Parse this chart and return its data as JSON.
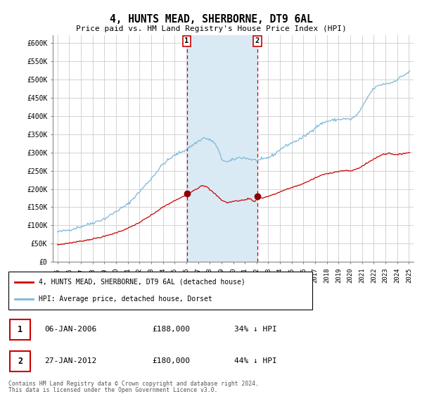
{
  "title": "4, HUNTS MEAD, SHERBORNE, DT9 6AL",
  "subtitle": "Price paid vs. HM Land Registry's House Price Index (HPI)",
  "hpi_color": "#7ab8d9",
  "price_color": "#cc0000",
  "marker_color": "#cc0000",
  "bg_color": "#ffffff",
  "plot_bg_color": "#ffffff",
  "grid_color": "#cccccc",
  "shaded_region_color": "#daeaf5",
  "ylim": [
    0,
    620000
  ],
  "yticks": [
    0,
    50000,
    100000,
    150000,
    200000,
    250000,
    300000,
    350000,
    400000,
    450000,
    500000,
    550000,
    600000
  ],
  "ytick_labels": [
    "£0",
    "£50K",
    "£100K",
    "£150K",
    "£200K",
    "£250K",
    "£300K",
    "£350K",
    "£400K",
    "£450K",
    "£500K",
    "£550K",
    "£600K"
  ],
  "sale1_x": 2006.04,
  "sale1_y": 188000,
  "sale1_label": "1",
  "sale1_date": "06-JAN-2006",
  "sale1_price": "£188,000",
  "sale1_hpi": "34% ↓ HPI",
  "sale2_x": 2012.07,
  "sale2_y": 180000,
  "sale2_label": "2",
  "sale2_date": "27-JAN-2012",
  "sale2_price": "£180,000",
  "sale2_hpi": "44% ↓ HPI",
  "legend_entry1": "4, HUNTS MEAD, SHERBORNE, DT9 6AL (detached house)",
  "legend_entry2": "HPI: Average price, detached house, Dorset",
  "footer1": "Contains HM Land Registry data © Crown copyright and database right 2024.",
  "footer2": "This data is licensed under the Open Government Licence v3.0.",
  "xlim_left": 1994.6,
  "xlim_right": 2025.4,
  "xtick_start": 1995,
  "xtick_end": 2025
}
